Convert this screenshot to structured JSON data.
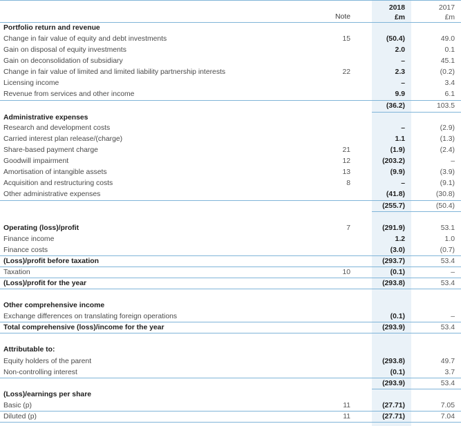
{
  "header": {
    "note": "Note",
    "y2018_year": "2018",
    "y2018_unit": "£m",
    "y2017_year": "2017",
    "y2017_unit": "£m"
  },
  "rows": [
    {
      "label": "Portfolio return and revenue",
      "bold": true,
      "note": "",
      "v2018": "",
      "v2017": ""
    },
    {
      "label": "Change in fair value of equity and debt investments",
      "bold": false,
      "note": "15",
      "v2018": "(50.4)",
      "v2017": "49.0"
    },
    {
      "label": "Gain on disposal of equity investments",
      "bold": false,
      "note": "",
      "v2018": "2.0",
      "v2017": "0.1"
    },
    {
      "label": "Gain on deconsolidation of subsidiary",
      "bold": false,
      "note": "",
      "v2018": "–",
      "v2017": "45.1"
    },
    {
      "label": "Change in fair value of limited and limited liability partnership interests",
      "bold": false,
      "note": "22",
      "v2018": "2.3",
      "v2017": "(0.2)"
    },
    {
      "label": "Licensing income",
      "bold": false,
      "note": "",
      "v2018": "–",
      "v2017": "3.4"
    },
    {
      "label": "Revenue from services and other income",
      "bold": false,
      "note": "",
      "v2018": "9.9",
      "v2017": "6.1"
    },
    {
      "label": "",
      "bold": false,
      "note": "",
      "v2018": "(36.2)",
      "v2017": "103.5"
    },
    {
      "label": "Administrative expenses",
      "bold": true,
      "note": "",
      "v2018": "",
      "v2017": ""
    },
    {
      "label": "Research and development costs",
      "bold": false,
      "note": "",
      "v2018": "–",
      "v2017": "(2.9)"
    },
    {
      "label": "Carried interest plan release/(charge)",
      "bold": false,
      "note": "",
      "v2018": "1.1",
      "v2017": "(1.3)"
    },
    {
      "label": "Share-based payment charge",
      "bold": false,
      "note": "21",
      "v2018": "(1.9)",
      "v2017": "(2.4)"
    },
    {
      "label": "Goodwill impairment",
      "bold": false,
      "note": "12",
      "v2018": "(203.2)",
      "v2017": "–"
    },
    {
      "label": "Amortisation of intangible assets",
      "bold": false,
      "note": "13",
      "v2018": "(9.9)",
      "v2017": "(3.9)"
    },
    {
      "label": "Acquisition and restructuring costs",
      "bold": false,
      "note": "8",
      "v2018": "–",
      "v2017": "(9.1)"
    },
    {
      "label": "Other administrative expenses",
      "bold": false,
      "note": "",
      "v2018": "(41.8)",
      "v2017": "(30.8)"
    },
    {
      "label": "",
      "bold": false,
      "note": "",
      "v2018": "(255.7)",
      "v2017": "(50.4)"
    },
    {
      "label": "Operating (loss)/profit",
      "bold": true,
      "note": "7",
      "v2018": "(291.9)",
      "v2017": "53.1"
    },
    {
      "label": "Finance income",
      "bold": false,
      "note": "",
      "v2018": "1.2",
      "v2017": "1.0"
    },
    {
      "label": "Finance costs",
      "bold": false,
      "note": "",
      "v2018": "(3.0)",
      "v2017": "(0.7)"
    },
    {
      "label": "(Loss)/profit before taxation",
      "bold": true,
      "note": "",
      "v2018": "(293.7)",
      "v2017": "53.4"
    },
    {
      "label": "Taxation",
      "bold": false,
      "note": "10",
      "v2018": "(0.1)",
      "v2017": "–"
    },
    {
      "label": "(Loss)/profit for the year",
      "bold": true,
      "note": "",
      "v2018": "(293.8)",
      "v2017": "53.4"
    },
    {
      "label": "Other comprehensive income",
      "bold": true,
      "note": "",
      "v2018": "",
      "v2017": ""
    },
    {
      "label": "Exchange differences on translating foreign operations",
      "bold": false,
      "note": "",
      "v2018": "(0.1)",
      "v2017": "–"
    },
    {
      "label": "Total comprehensive (loss)/income for the year",
      "bold": true,
      "note": "",
      "v2018": "(293.9)",
      "v2017": "53.4"
    },
    {
      "label": "Attributable to:",
      "bold": true,
      "note": "",
      "v2018": "",
      "v2017": ""
    },
    {
      "label": "Equity holders of the parent",
      "bold": false,
      "note": "",
      "v2018": "(293.8)",
      "v2017": "49.7"
    },
    {
      "label": "Non-controlling interest",
      "bold": false,
      "note": "",
      "v2018": "(0.1)",
      "v2017": "3.7"
    },
    {
      "label": "",
      "bold": false,
      "note": "",
      "v2018": "(293.9)",
      "v2017": "53.4"
    },
    {
      "label": "(Loss)/earnings per share",
      "bold": true,
      "note": "",
      "v2018": "",
      "v2017": ""
    },
    {
      "label": "Basic (p)",
      "bold": false,
      "note": "11",
      "v2018": "(27.71)",
      "v2017": "7.05"
    },
    {
      "label": "Diluted (p)",
      "bold": false,
      "note": "11",
      "v2018": "(27.71)",
      "v2017": "7.04"
    }
  ]
}
